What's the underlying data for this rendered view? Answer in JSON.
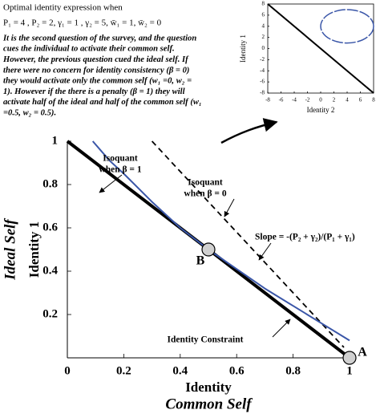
{
  "text_block": {
    "title": "Optimal identity expression when",
    "params": "P₁ = 4 , P₂ = 2, γ₁ = 1 , γ₂ = 5, w̄₁ = 1, w̄₂ = 0",
    "lines": [
      "It is the second question of the survey, and the question",
      "cues the individual to activate their common self.",
      "However, the previous question cued the ideal self. If",
      "there were no concern for identity consistency (β = 0)",
      "they would activate only the common self (w₁ =0, w₂ =",
      "1). However if the there is a penalty (β = 1) they will",
      "activate half of the ideal and half of the common self (w₁",
      "=0.5, w₂ = 0.5)."
    ]
  },
  "chart_data": [
    {
      "type": "line",
      "xlabel": "Identity",
      "xlabel_outer": "Common Self",
      "ylabel": "Identity 1",
      "ylabel_outer": "Ideal Self",
      "xlim": [
        0,
        1
      ],
      "ylim": [
        0,
        1
      ],
      "xticks": [
        0,
        0.2,
        0.4,
        0.6,
        0.8,
        1
      ],
      "yticks": [
        0.2,
        0.4,
        0.6,
        0.8,
        1
      ],
      "grid": false,
      "series": [
        {
          "x": [
            0,
            1
          ],
          "y": [
            1,
            0
          ],
          "color": "#000000",
          "style": "thick"
        },
        {
          "x": [
            0.3,
            0.98
          ],
          "y": [
            1,
            0.048
          ],
          "color": "#000000",
          "style": "dashed"
        },
        {
          "x": [
            0.09,
            0.15,
            0.2,
            0.3,
            0.4,
            0.5,
            0.6,
            0.7,
            0.8,
            0.9,
            1.0
          ],
          "y": [
            1.0,
            0.91,
            0.85,
            0.72,
            0.6,
            0.5,
            0.41,
            0.32,
            0.24,
            0.16,
            0.08
          ],
          "color": "#3a56a8",
          "style": "solid"
        }
      ],
      "points": {
        "x": [
          0.5,
          1
        ],
        "y": [
          0.5,
          0
        ],
        "labels": [
          "B",
          "A"
        ]
      },
      "annotations": [
        {
          "lines": [
            "Isoquant",
            "when β = 1"
          ]
        },
        {
          "lines": [
            "Isoquant",
            "when β = 0"
          ]
        },
        {
          "lines": [
            "Slope = -(P₂ + γ₂)/(P₁ + γ₁)"
          ]
        },
        {
          "lines": [
            "Identity Constraint"
          ]
        }
      ]
    },
    {
      "type": "line",
      "xlabel": "Identity 2",
      "ylabel": "Identity 1",
      "xlim": [
        -8,
        8
      ],
      "ylim": [
        -8,
        8
      ],
      "xticks": [
        -8,
        -6,
        -4,
        -2,
        0,
        2,
        4,
        6,
        8
      ],
      "yticks": [
        -8,
        -6,
        -4,
        -2,
        0,
        2,
        4,
        6,
        8
      ],
      "grid": false,
      "series": [
        {
          "x": [
            -8,
            8
          ],
          "y": [
            8,
            -8
          ],
          "color": "#000000",
          "style": "medium"
        }
      ],
      "ellipse": {
        "cx": 4,
        "cy": 4,
        "rx": 4,
        "ry": 3,
        "color": "#3a56a8"
      }
    }
  ]
}
